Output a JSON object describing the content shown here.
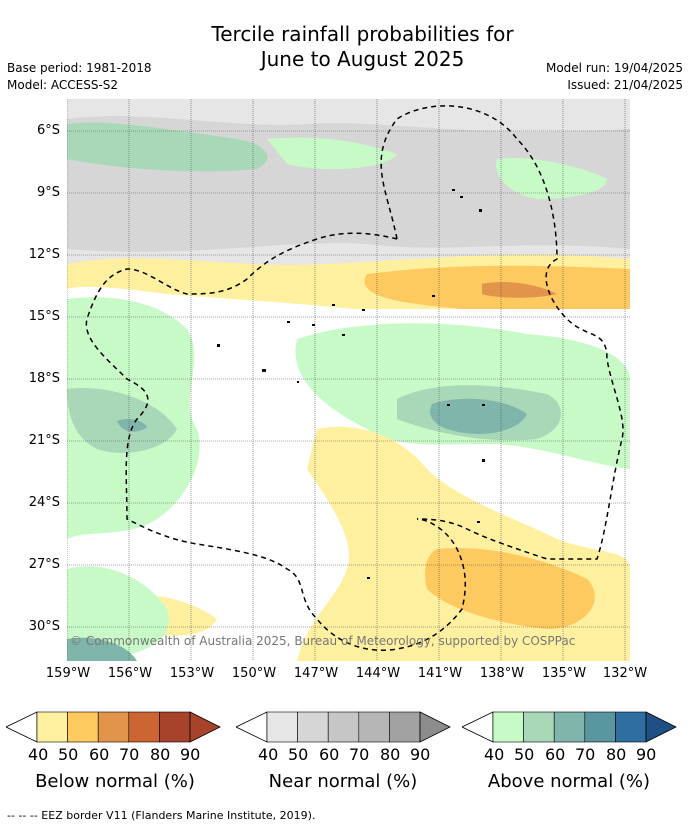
{
  "title": {
    "line1": "Tercile rainfall probabilities for",
    "line2": "June to August 2025"
  },
  "meta": {
    "base_period": "Base period: 1981-2018",
    "model": "Model: ACCESS-S2",
    "model_run": "Model run: 19/04/2025",
    "issued": "Issued: 21/04/2025"
  },
  "axes": {
    "y_labels": [
      "6°S",
      "9°S",
      "12°S",
      "15°S",
      "18°S",
      "21°S",
      "24°S",
      "27°S",
      "30°S"
    ],
    "x_labels": [
      "159°W",
      "156°W",
      "153°W",
      "150°W",
      "147°W",
      "144°W",
      "141°W",
      "138°W",
      "135°W",
      "132°W"
    ]
  },
  "copyright": "© Commonwealth of Australia 2025, Bureau of Meteorology, supported by COSPPac",
  "legend": {
    "below": {
      "title": "Below normal (%)",
      "colors": [
        "#fff0a0",
        "#fec95f",
        "#e1944a",
        "#cc6532",
        "#a8432b",
        "#a8432b"
      ]
    },
    "near": {
      "title": "Near normal (%)",
      "colors": [
        "#e6e6e6",
        "#d6d6d6",
        "#c6c6c6",
        "#b6b6b6",
        "#a2a2a2",
        "#8c8c8c"
      ]
    },
    "above": {
      "title": "Above normal (%)",
      "colors": [
        "#c8fac8",
        "#a8d8b8",
        "#7fb5aa",
        "#5a96a0",
        "#2f6ea0",
        "#1f4f84"
      ]
    },
    "ticks": [
      "40",
      "50",
      "60",
      "70",
      "80",
      "90"
    ]
  },
  "footer": "-- -- -- EEZ border V11 (Flanders Marine Institute, 2019)."
}
